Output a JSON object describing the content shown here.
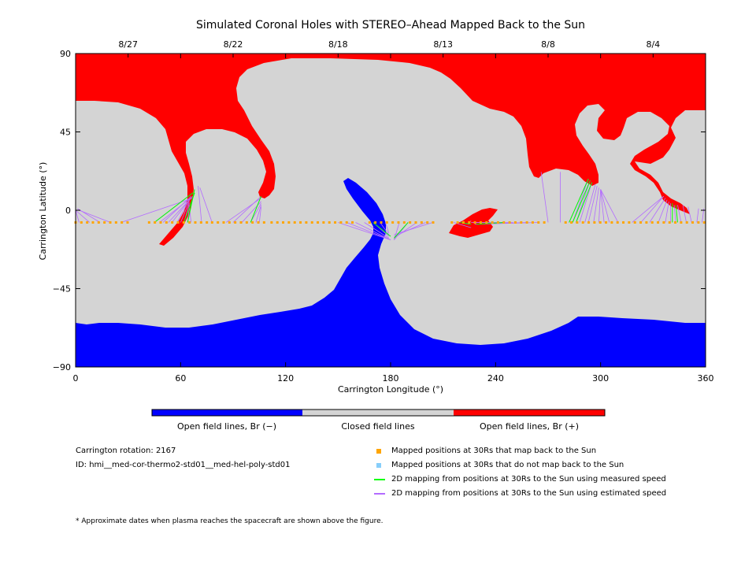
{
  "chart_data": {
    "type": "map",
    "title": "Simulated Coronal Holes with STEREO–Ahead Mapped Back to the Sun",
    "xlabel": "Carrington Longitude (°)",
    "ylabel": "Carrington Latitude (°)",
    "xlim": [
      0,
      360
    ],
    "ylim": [
      -90,
      90
    ],
    "x_ticks": [
      0,
      60,
      120,
      180,
      240,
      300,
      360
    ],
    "y_ticks": [
      90,
      45,
      0,
      -45,
      -90
    ],
    "y_tick_labels": [
      "90",
      "45",
      "0",
      "−45",
      "−90"
    ],
    "top_axis_dates": [
      {
        "label": "8/27",
        "lon": 30
      },
      {
        "label": "8/22",
        "lon": 90
      },
      {
        "label": "8/18",
        "lon": 150
      },
      {
        "label": "8/13",
        "lon": 210
      },
      {
        "label": "8/8",
        "lon": 270
      },
      {
        "label": "8/4",
        "lon": 330
      }
    ],
    "footpoint_latitude": -7,
    "footpoint_lon_ranges": [
      [
        0,
        30
      ],
      [
        42,
        75
      ],
      [
        78,
        110
      ],
      [
        112,
        160
      ],
      [
        168,
        205
      ],
      [
        215,
        270
      ],
      [
        280,
        360
      ]
    ],
    "footpoint_spacing": 3.3,
    "mapping_lines": [
      {
        "from": [
          2,
          -7
        ],
        "to": [
          0,
          0
        ]
      },
      {
        "from": [
          8,
          -7
        ],
        "to": [
          0,
          0
        ]
      },
      {
        "from": [
          14,
          -7
        ],
        "to": [
          1,
          1
        ]
      },
      {
        "from": [
          20,
          -7
        ],
        "to": [
          2,
          0
        ]
      },
      {
        "from": [
          26,
          -7
        ],
        "to": [
          67,
          7
        ]
      },
      {
        "from": [
          45,
          -7
        ],
        "to": [
          67,
          10
        ]
      },
      {
        "from": [
          48,
          -7
        ],
        "to": [
          67,
          8
        ]
      },
      {
        "from": [
          50,
          -7
        ],
        "to": [
          66,
          8
        ]
      },
      {
        "from": [
          53,
          -7
        ],
        "to": [
          66,
          7
        ]
      },
      {
        "from": [
          55,
          -7
        ],
        "to": [
          66,
          7
        ]
      },
      {
        "from": [
          58,
          -7
        ],
        "to": [
          65,
          6
        ]
      },
      {
        "from": [
          60,
          -7
        ],
        "to": [
          65,
          5
        ]
      },
      {
        "from": [
          62,
          -7
        ],
        "to": [
          65,
          4
        ]
      },
      {
        "from": [
          64,
          -7
        ],
        "to": [
          65,
          3
        ]
      },
      {
        "from": [
          66,
          -7
        ],
        "to": [
          65,
          2
        ]
      },
      {
        "from": [
          72,
          -7
        ],
        "to": [
          70,
          14
        ]
      },
      {
        "from": [
          78,
          -7
        ],
        "to": [
          71,
          13
        ]
      },
      {
        "from": [
          86,
          -7
        ],
        "to": [
          106,
          7
        ]
      },
      {
        "from": [
          90,
          -7
        ],
        "to": [
          106,
          8
        ]
      },
      {
        "from": [
          95,
          -7
        ],
        "to": [
          106,
          5
        ]
      },
      {
        "from": [
          100,
          -7
        ],
        "to": [
          106,
          4
        ]
      },
      {
        "from": [
          103,
          -7
        ],
        "to": [
          106,
          3
        ]
      },
      {
        "from": [
          105,
          -7
        ],
        "to": [
          106,
          2
        ]
      },
      {
        "from": [
          150,
          -7
        ],
        "to": [
          180,
          -17
        ]
      },
      {
        "from": [
          155,
          -7
        ],
        "to": [
          180,
          -17
        ]
      },
      {
        "from": [
          160,
          -7
        ],
        "to": [
          180,
          -17
        ]
      },
      {
        "from": [
          165,
          -7
        ],
        "to": [
          179,
          -16
        ]
      },
      {
        "from": [
          170,
          -7
        ],
        "to": [
          179,
          -15
        ]
      },
      {
        "from": [
          174,
          -7
        ],
        "to": [
          179,
          -14
        ]
      },
      {
        "from": [
          177,
          -7
        ],
        "to": [
          179,
          -13
        ]
      },
      {
        "from": [
          185,
          -7
        ],
        "to": [
          182,
          -17
        ]
      },
      {
        "from": [
          190,
          -7
        ],
        "to": [
          182,
          -17
        ]
      },
      {
        "from": [
          195,
          -7
        ],
        "to": [
          182,
          -16
        ]
      },
      {
        "from": [
          200,
          -7
        ],
        "to": [
          182,
          -15
        ]
      },
      {
        "from": [
          204,
          -7
        ],
        "to": [
          182,
          -14
        ]
      },
      {
        "from": [
          216,
          -7
        ],
        "to": [
          226,
          -10
        ]
      },
      {
        "from": [
          220,
          -7
        ],
        "to": [
          225,
          -8
        ]
      },
      {
        "from": [
          225,
          -7
        ],
        "to": [
          226,
          -6
        ]
      },
      {
        "from": [
          232,
          -7
        ],
        "to": [
          226,
          -7
        ]
      },
      {
        "from": [
          240,
          -7
        ],
        "to": [
          227,
          -7
        ]
      },
      {
        "from": [
          250,
          -7
        ],
        "to": [
          228,
          -7
        ]
      },
      {
        "from": [
          258,
          -7
        ],
        "to": [
          228,
          -8
        ]
      },
      {
        "from": [
          265,
          -7
        ],
        "to": [
          229,
          -8
        ]
      },
      {
        "from": [
          270,
          -7
        ],
        "to": [
          266,
          22
        ]
      },
      {
        "from": [
          277,
          -7
        ],
        "to": [
          277,
          22
        ]
      },
      {
        "from": [
          282,
          -7
        ],
        "to": [
          293,
          18
        ]
      },
      {
        "from": [
          284,
          -7
        ],
        "to": [
          293,
          18
        ]
      },
      {
        "from": [
          286,
          -7
        ],
        "to": [
          294,
          17
        ]
      },
      {
        "from": [
          288,
          -7
        ],
        "to": [
          295,
          16
        ]
      },
      {
        "from": [
          291,
          -7
        ],
        "to": [
          297,
          15
        ]
      },
      {
        "from": [
          293,
          -7
        ],
        "to": [
          298,
          14
        ]
      },
      {
        "from": [
          296,
          -7
        ],
        "to": [
          299,
          13
        ]
      },
      {
        "from": [
          299,
          -7
        ],
        "to": [
          300,
          12
        ]
      },
      {
        "from": [
          302,
          -7
        ],
        "to": [
          300,
          12
        ]
      },
      {
        "from": [
          305,
          -7
        ],
        "to": [
          300,
          12
        ]
      },
      {
        "from": [
          310,
          -7
        ],
        "to": [
          300,
          12
        ]
      },
      {
        "from": [
          318,
          -7
        ],
        "to": [
          336,
          8
        ]
      },
      {
        "from": [
          323,
          -7
        ],
        "to": [
          336,
          8
        ]
      },
      {
        "from": [
          328,
          -7
        ],
        "to": [
          337,
          7
        ]
      },
      {
        "from": [
          333,
          -7
        ],
        "to": [
          338,
          6
        ]
      },
      {
        "from": [
          337,
          -7
        ],
        "to": [
          339,
          5
        ]
      },
      {
        "from": [
          340,
          -7
        ],
        "to": [
          340,
          4
        ]
      },
      {
        "from": [
          343,
          -7
        ],
        "to": [
          342,
          3
        ]
      },
      {
        "from": [
          346,
          -7
        ],
        "to": [
          344,
          3
        ]
      },
      {
        "from": [
          349,
          -7
        ],
        "to": [
          347,
          3
        ]
      },
      {
        "from": [
          352,
          -7
        ],
        "to": [
          350,
          2
        ]
      },
      {
        "from": [
          355,
          -7
        ],
        "to": [
          356,
          1
        ]
      },
      {
        "from": [
          358,
          -7
        ],
        "to": [
          359,
          1
        ]
      },
      {
        "from": [
          360,
          -7
        ],
        "to": [
          360,
          2
        ]
      }
    ],
    "measured_lines": [
      {
        "from": [
          45,
          -7
        ],
        "to": [
          67,
          10
        ]
      },
      {
        "from": [
          62,
          -7
        ],
        "to": [
          68,
          10
        ]
      },
      {
        "from": [
          64,
          -7
        ],
        "to": [
          68,
          12
        ]
      },
      {
        "from": [
          100,
          -7
        ],
        "to": [
          106,
          8
        ]
      },
      {
        "from": [
          170,
          -7
        ],
        "to": [
          180,
          -15
        ]
      },
      {
        "from": [
          190,
          -7
        ],
        "to": [
          182,
          -16
        ]
      },
      {
        "from": [
          220,
          -7
        ],
        "to": [
          226,
          -8
        ]
      },
      {
        "from": [
          245,
          -7
        ],
        "to": [
          229,
          -8
        ]
      },
      {
        "from": [
          282,
          -7
        ],
        "to": [
          293,
          18
        ]
      },
      {
        "from": [
          284,
          -7
        ],
        "to": [
          294,
          17
        ]
      },
      {
        "from": [
          286,
          -7
        ],
        "to": [
          295,
          16
        ]
      },
      {
        "from": [
          341,
          -7
        ],
        "to": [
          341,
          4
        ]
      },
      {
        "from": [
          344,
          -7
        ],
        "to": [
          343,
          3
        ]
      }
    ],
    "colorbar": {
      "segments": [
        {
          "label": "Open field lines, Br (−)",
          "color": "#0000ff"
        },
        {
          "label": "Closed field lines",
          "color": "#d4d4d4"
        },
        {
          "label": "Open field lines, Br (+)",
          "color": "#ff0000"
        }
      ]
    }
  },
  "info": {
    "rotation": "Carrington rotation: 2167",
    "id": "ID: hmi__med-cor-thermo2-std01__med-hel-poly-std01",
    "footnote": "* Approximate dates when plasma reaches the spacecraft are shown above the figure."
  },
  "legend": [
    {
      "label": "Mapped positions at 30Rs that map back to the Sun",
      "kind": "square",
      "color": "#ffa500"
    },
    {
      "label": "Mapped positions at 30Rs that do not map back to the Sun",
      "kind": "square",
      "color": "#87cefa"
    },
    {
      "label": "2D mapping from positions at 30Rs to the Sun using measured speed",
      "kind": "line",
      "color": "#00ff00"
    },
    {
      "label": "2D mapping from positions at 30Rs to the Sun using estimated speed",
      "kind": "line",
      "color": "#b36bff"
    }
  ],
  "colors": {
    "negative": "#0000ff",
    "closed": "#d4d4d4",
    "positive": "#ff0000",
    "mapped": "#ffa500",
    "measured": "#00ff00",
    "estimated": "#b36bff"
  }
}
